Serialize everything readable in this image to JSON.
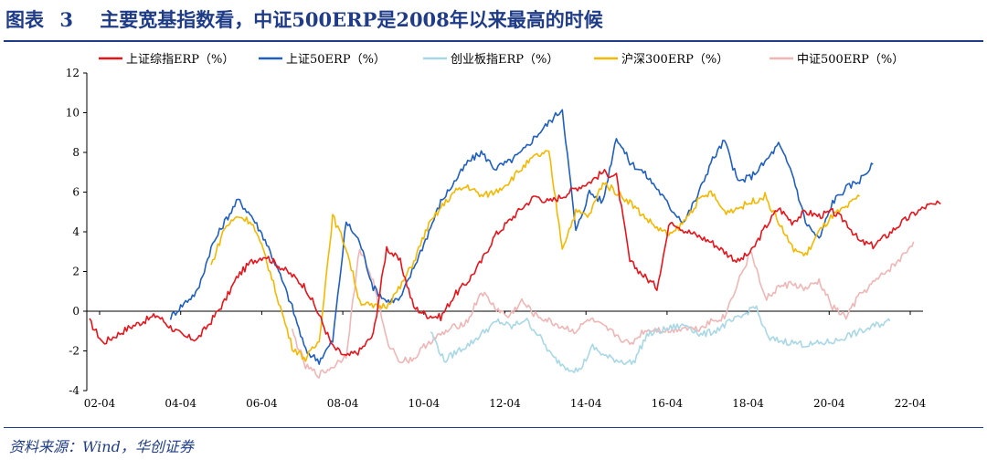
{
  "figure": {
    "label": "图表",
    "number": "3",
    "title": "主要宽基指数看，中证500ERP是2008年以来最高的时候",
    "source": "资料来源：Wind，华创证券"
  },
  "chart_data": {
    "type": "line",
    "y_ticks": [
      "12",
      "10",
      "8",
      "6",
      "4",
      "2",
      "0",
      "-2",
      "-4"
    ],
    "ylim": [
      -4,
      12
    ],
    "x_ticks": [
      "02-04",
      "04-04",
      "06-04",
      "08-04",
      "10-04",
      "12-04",
      "14-04",
      "16-04",
      "18-04",
      "20-04",
      "22-04"
    ],
    "xlim": [
      "2002-04",
      "2022-04"
    ],
    "legend_position": "top",
    "grid": false,
    "series": [
      {
        "name": "上证综指ERP（%）",
        "color": "#e8141b",
        "start": "2002-01",
        "values": [
          -0.5,
          -1.6,
          -1.2,
          -0.8,
          -0.5,
          -0.2,
          -0.8,
          -1.3,
          -1.4,
          -0.5,
          0.5,
          1.8,
          2.5,
          2.8,
          2.3,
          1.8,
          1.2,
          -0.2,
          -1.8,
          -2.3,
          -2.0,
          -1.2,
          3.2,
          2.5,
          0.2,
          -0.2,
          -0.3,
          0.8,
          1.5,
          2.5,
          3.8,
          4.5,
          5.2,
          5.8,
          5.5,
          5.8,
          6.2,
          6.5,
          7.0,
          6.8,
          2.5,
          1.8,
          1.2,
          4.6,
          4.1,
          3.8,
          3.5,
          3.0,
          2.5,
          3.0,
          4.2,
          5.2,
          4.5,
          5.0,
          4.8,
          5.0,
          4.5,
          3.5,
          3.3,
          3.8,
          4.4,
          4.9,
          5.3,
          5.4
        ]
      },
      {
        "name": "上证50ERP（%）",
        "color": "#1f5fbf",
        "start": "2004-01",
        "values": [
          -0.3,
          0.4,
          1.0,
          3.2,
          4.5,
          5.6,
          4.8,
          3.6,
          2.0,
          0.2,
          -2.0,
          -2.5,
          -1.5,
          4.5,
          3.5,
          1.2,
          0.5,
          0.6,
          2.2,
          3.8,
          5.5,
          6.5,
          7.5,
          8.0,
          7.2,
          7.5,
          8.0,
          8.8,
          9.5,
          10.2,
          4.0,
          6.0,
          5.5,
          8.8,
          7.5,
          7.0,
          6.2,
          5.2,
          4.5,
          5.8,
          7.5,
          8.6,
          6.5,
          6.8,
          7.5,
          8.4,
          7.0,
          4.5,
          3.6,
          5.5,
          6.2,
          6.6,
          7.4
        ]
      },
      {
        "name": "创业板指ERP（%）",
        "color": "#a8d8e6",
        "start": "2010-06",
        "values": [
          -1.0,
          -2.5,
          -2.0,
          -1.6,
          -1.0,
          -0.5,
          -0.8,
          -0.4,
          -1.2,
          -2.3,
          -2.8,
          -3.0,
          -1.8,
          -2.3,
          -2.5,
          -2.6,
          -1.2,
          -1.0,
          -0.8,
          -0.7,
          -1.2,
          -1.0,
          -0.6,
          -0.3,
          0.3,
          -1.4,
          -1.5,
          -1.6,
          -1.7,
          -1.6,
          -1.5,
          -1.2,
          -1.0,
          -0.7,
          -0.5
        ]
      },
      {
        "name": "沪深300ERP（%）",
        "color": "#f5b800",
        "start": "2005-01",
        "values": [
          2.3,
          4.2,
          4.8,
          4.5,
          2.8,
          0.5,
          -1.8,
          -2.4,
          -1.5,
          4.8,
          3.2,
          0.5,
          0.2,
          0.3,
          1.2,
          2.5,
          4.2,
          5.2,
          6.0,
          6.3,
          5.8,
          6.0,
          6.5,
          7.2,
          7.8,
          8.0,
          3.2,
          5.0,
          4.8,
          6.5,
          6.0,
          5.5,
          4.8,
          4.2,
          3.8,
          4.5,
          5.5,
          6.0,
          5.0,
          5.2,
          5.5,
          5.8,
          4.5,
          3.2,
          2.8,
          4.0,
          4.8,
          5.2,
          5.8
        ]
      },
      {
        "name": "中证500ERP（%）",
        "color": "#f0b6b6",
        "start": "2007-01",
        "values": [
          -1.0,
          -2.8,
          -3.2,
          -2.8,
          -2.2,
          3.2,
          1.5,
          -1.5,
          -2.5,
          -2.4,
          -1.6,
          -1.2,
          -0.8,
          -0.5,
          1.0,
          0.2,
          -0.3,
          0.5,
          -0.2,
          -0.5,
          -0.8,
          -1.0,
          -0.4,
          -0.8,
          -1.2,
          -1.7,
          -1.0,
          -0.9,
          -1.0,
          -0.8,
          -0.9,
          -0.5,
          -0.3,
          1.5,
          3.0,
          0.6,
          1.2,
          1.4,
          1.1,
          1.5,
          0.2,
          -0.3,
          0.8,
          1.4,
          2.0,
          2.6,
          3.5
        ]
      }
    ]
  }
}
